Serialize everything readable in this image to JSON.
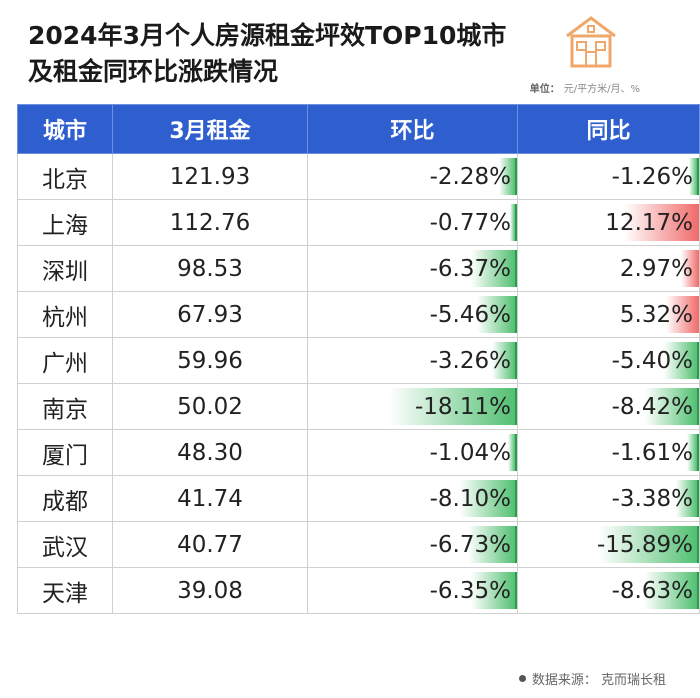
{
  "title": {
    "line1": "2024年3月个人房源租金坪效TOP10城市",
    "line2": "及租金同环比涨跌情况"
  },
  "unit": {
    "label": "单位：",
    "value": "元/平方米/月、%"
  },
  "table": {
    "headers": [
      "城市",
      "3月租金",
      "环比",
      "同比"
    ],
    "rows": [
      {
        "city": "北京",
        "rent": "121.93",
        "mom": "-2.28%",
        "mom_value": -2.28,
        "yoy": "-1.26%",
        "yoy_value": -1.26
      },
      {
        "city": "上海",
        "rent": "112.76",
        "mom": "-0.77%",
        "mom_value": -0.77,
        "yoy": "12.17%",
        "yoy_value": 12.17
      },
      {
        "city": "深圳",
        "rent": "98.53",
        "mom": "-6.37%",
        "mom_value": -6.37,
        "yoy": "2.97%",
        "yoy_value": 2.97
      },
      {
        "city": "杭州",
        "rent": "67.93",
        "mom": "-5.46%",
        "mom_value": -5.46,
        "yoy": "5.32%",
        "yoy_value": 5.32
      },
      {
        "city": "广州",
        "rent": "59.96",
        "mom": "-3.26%",
        "mom_value": -3.26,
        "yoy": "-5.40%",
        "yoy_value": -5.4
      },
      {
        "city": "南京",
        "rent": "50.02",
        "mom": "-18.11%",
        "mom_value": -18.11,
        "yoy": "-8.42%",
        "yoy_value": -8.42
      },
      {
        "city": "厦门",
        "rent": "48.30",
        "mom": "-1.04%",
        "mom_value": -1.04,
        "yoy": "-1.61%",
        "yoy_value": -1.61
      },
      {
        "city": "成都",
        "rent": "41.74",
        "mom": "-8.10%",
        "mom_value": -8.1,
        "yoy": "-3.38%",
        "yoy_value": -3.38
      },
      {
        "city": "武汉",
        "rent": "40.77",
        "mom": "-6.73%",
        "mom_value": -6.73,
        "yoy": "-15.89%",
        "yoy_value": -15.89
      },
      {
        "city": "天津",
        "rent": "39.08",
        "mom": "-6.35%",
        "mom_value": -6.35,
        "yoy": "-8.63%",
        "yoy_value": -8.63
      }
    ]
  },
  "source": "数据来源：  克而瑞长租",
  "colors": {
    "header_bg": "#2f5fcf",
    "negative": "#52c072",
    "positive": "#f06a6a"
  }
}
